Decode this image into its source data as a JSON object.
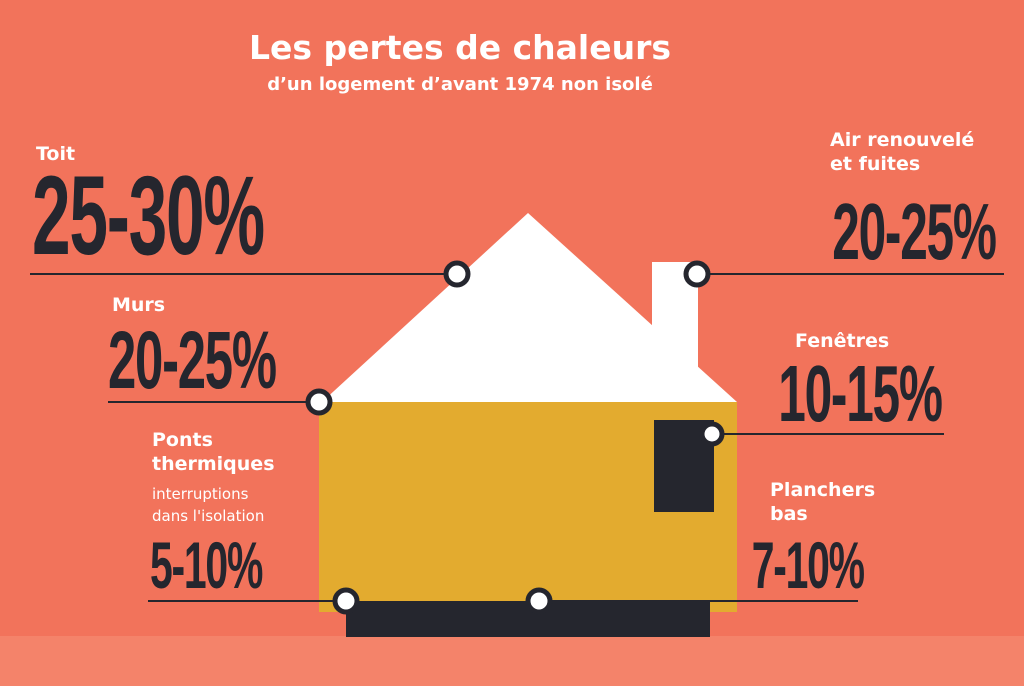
{
  "title": "Les pertes de chaleurs",
  "subtitle": "d’un logement d’avant 1974 non isolé",
  "losses": [
    {
      "label": "Toit",
      "value": "25-30%"
    },
    {
      "label": "Murs",
      "value": "20-25%"
    },
    {
      "label": "Ponts thermiques",
      "note": [
        "interruptions",
        "dans l'isolation"
      ],
      "value": "5-10%"
    },
    {
      "label": "Air renouvelé et fuites",
      "value": "20-25%"
    },
    {
      "label": "Fenêtres",
      "value": "10-15%"
    },
    {
      "label": "Planchers bas",
      "value": "7-10%"
    }
  ],
  "colors": {
    "background": "#f2735b",
    "ground": "#f4836a",
    "roof": "#ffffff",
    "walls": "#e3ab2f",
    "window": "#25262e",
    "foundation": "#25262e",
    "lines": "#25262e",
    "text_light": "#ffffff",
    "text_dark": "#25262e"
  }
}
